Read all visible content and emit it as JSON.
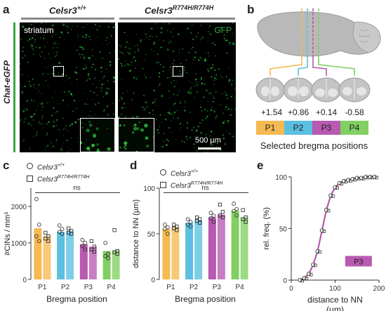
{
  "panel_letters": {
    "a": "a",
    "b": "b",
    "c": "c",
    "d": "d",
    "e": "e"
  },
  "panel_a": {
    "label_left_base": "Celsr3",
    "label_left_sup": "+/+",
    "label_right_base": "Celsr3",
    "label_right_sup": "R774H/R774H",
    "side_label": "Chat-eGFP",
    "region_label": "striatum",
    "channel_label": "GFP",
    "scale_bar": "500 µm",
    "accent_green": "#3aa845"
  },
  "panel_b": {
    "positions": [
      {
        "bregma": "+1.54",
        "name": "P1",
        "color": "#f5ba52"
      },
      {
        "bregma": "+0.86",
        "name": "P2",
        "color": "#5bbfe0"
      },
      {
        "bregma": "+0.14",
        "name": "P3",
        "color": "#b85ab0"
      },
      {
        "bregma": "-0.58",
        "name": "P4",
        "color": "#82cf62"
      }
    ],
    "caption": "Selected bregma positions"
  },
  "legend": {
    "wt_base": "Celsr3",
    "wt_sup": "+/+",
    "mut_base": "Celsr3",
    "mut_sup": "R774H/R774H"
  },
  "chart_data": [
    {
      "panel": "c",
      "type": "bar",
      "ylabel": "#CINs / mm³",
      "xlabel": "Bregma position",
      "categories": [
        "P1",
        "P2",
        "P3",
        "P4"
      ],
      "ylim": [
        0,
        2500
      ],
      "yticks": [
        0,
        1000,
        2000
      ],
      "significance": "ns",
      "series": [
        {
          "name": "Celsr3+/+",
          "values": [
            1400,
            1300,
            960,
            780
          ]
        },
        {
          "name": "Celsr3R774H/R774H",
          "values": [
            1180,
            1320,
            900,
            800
          ]
        }
      ],
      "points_wt": [
        [
          2200,
          1500,
          1180,
          1050
        ],
        [
          1480,
          1380,
          1300,
          1250
        ],
        [
          1080,
          1000,
          920,
          820
        ],
        [
          1000,
          700,
          640,
          580
        ]
      ],
      "points_mut": [
        [
          1280,
          1180,
          1120,
          1050
        ],
        [
          1400,
          1330,
          1280,
          1250
        ],
        [
          1050,
          900,
          820,
          760
        ],
        [
          1350,
          780,
          740,
          700
        ]
      ]
    },
    {
      "panel": "d",
      "type": "bar",
      "ylabel": "distance to NN (µm)",
      "xlabel": "Bregma position",
      "categories": [
        "P1",
        "P2",
        "P3",
        "P4"
      ],
      "ylim": [
        0,
        100
      ],
      "yticks": [
        0,
        50,
        100
      ],
      "significance": "ns",
      "series": [
        {
          "name": "Celsr3+/+",
          "values": [
            55,
            62,
            68,
            75
          ]
        },
        {
          "name": "Celsr3R774H/R774H",
          "values": [
            57,
            65,
            71,
            68
          ]
        }
      ],
      "points_wt": [
        [
          60,
          57,
          55,
          50
        ],
        [
          66,
          63,
          60,
          58
        ],
        [
          73,
          70,
          67,
          63
        ],
        [
          83,
          77,
          75,
          70
        ]
      ],
      "points_mut": [
        [
          60,
          58,
          56,
          54
        ],
        [
          68,
          66,
          64,
          62
        ],
        [
          82,
          74,
          70,
          68
        ],
        [
          76,
          68,
          66,
          63
        ]
      ]
    },
    {
      "panel": "e",
      "type": "line",
      "ylabel": "rel. freq. (%)",
      "xlabel": "distance to NN\n(µm)",
      "xlim": [
        0,
        200
      ],
      "ylim": [
        0,
        100
      ],
      "xticks": [
        0,
        100,
        200
      ],
      "yticks": [
        0,
        50,
        100
      ],
      "label": "P3",
      "x": [
        20,
        30,
        40,
        50,
        60,
        70,
        80,
        90,
        100,
        110,
        120,
        130,
        140,
        150,
        160,
        170,
        180,
        190
      ],
      "y": [
        0,
        2,
        6,
        15,
        28,
        48,
        68,
        82,
        90,
        94,
        96,
        97,
        98,
        99,
        99,
        100,
        100,
        100
      ]
    }
  ]
}
